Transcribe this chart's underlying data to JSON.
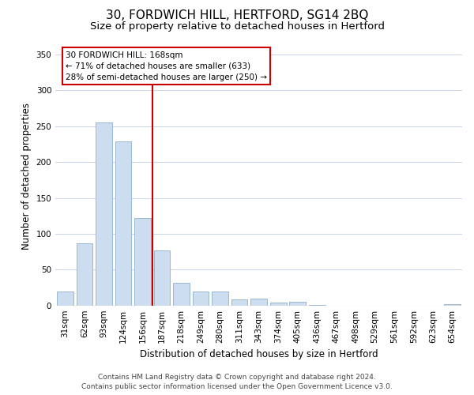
{
  "title": "30, FORDWICH HILL, HERTFORD, SG14 2BQ",
  "subtitle": "Size of property relative to detached houses in Hertford",
  "xlabel": "Distribution of detached houses by size in Hertford",
  "ylabel": "Number of detached properties",
  "bar_labels": [
    "31sqm",
    "62sqm",
    "93sqm",
    "124sqm",
    "156sqm",
    "187sqm",
    "218sqm",
    "249sqm",
    "280sqm",
    "311sqm",
    "343sqm",
    "374sqm",
    "405sqm",
    "436sqm",
    "467sqm",
    "498sqm",
    "529sqm",
    "561sqm",
    "592sqm",
    "623sqm",
    "654sqm"
  ],
  "bar_values": [
    19,
    87,
    255,
    229,
    122,
    77,
    32,
    20,
    20,
    9,
    10,
    4,
    5,
    1,
    0,
    0,
    0,
    0,
    0,
    0,
    2
  ],
  "bar_color": "#ccddf0",
  "bar_edge_color": "#9ab8d0",
  "vline_x": 4.5,
  "vline_color": "#cc0000",
  "annotation_title": "30 FORDWICH HILL: 168sqm",
  "annotation_line1": "← 71% of detached houses are smaller (633)",
  "annotation_line2": "28% of semi-detached houses are larger (250) →",
  "annotation_box_color": "#ffffff",
  "annotation_box_edge_color": "#cc0000",
  "ylim": [
    0,
    360
  ],
  "yticks": [
    0,
    50,
    100,
    150,
    200,
    250,
    300,
    350
  ],
  "footer_line1": "Contains HM Land Registry data © Crown copyright and database right 2024.",
  "footer_line2": "Contains public sector information licensed under the Open Government Licence v3.0.",
  "bg_color": "#ffffff",
  "grid_color": "#ccd8e8",
  "title_fontsize": 11,
  "subtitle_fontsize": 9.5,
  "axis_label_fontsize": 8.5,
  "tick_fontsize": 7.5,
  "footer_fontsize": 6.5
}
